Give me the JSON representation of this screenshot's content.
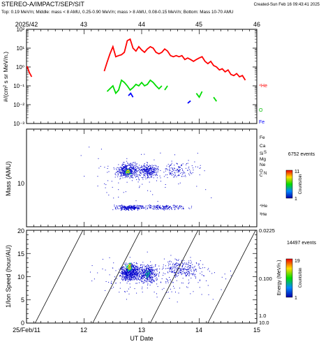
{
  "header": {
    "title": "STEREO-A/IMPACT/SEP/SIT",
    "created": "Created-Sun Feb 16 09:43:41 2025",
    "subtitle": "Top: 0.19 MeV/n; Middle: mass < 8 AMU, 0.25-0.90 MeV/n; mass > 8 AMU, 0.08-0.15 MeV/n; Bottom: Mass 10-70 AMU"
  },
  "colors": {
    "He": "#ff0000",
    "O": "#00dd00",
    "Fe": "#0000ff",
    "scatter": "#0000cc"
  },
  "chart_data": [
    {
      "type": "line",
      "panel": "top",
      "ylabel": "#/(cm² s sr MeV/n.)",
      "yscale": "log",
      "ylim_exp": [
        -3,
        2
      ],
      "ytick_labels": [
        "10⁻³",
        "10⁻²",
        "10⁻¹",
        "10⁰",
        "10¹",
        "10²"
      ],
      "top_axis_labels": [
        "2025/42",
        "43",
        "44",
        "45",
        "46"
      ],
      "x_domain_days": [
        11,
        15
      ],
      "series": [
        {
          "name": "⁴He",
          "color": "#ff0000",
          "segments": [
            [
              [
                11.01,
                1.1
              ],
              [
                11.05,
                0.5
              ],
              [
                11.09,
                0.3
              ]
            ],
            [
              [
                12.35,
                0.6
              ],
              [
                12.4,
                1.8
              ],
              [
                12.45,
                5
              ],
              [
                12.5,
                12
              ],
              [
                12.55,
                3.5
              ],
              [
                12.6,
                4
              ],
              [
                12.65,
                4.5
              ],
              [
                12.7,
                6
              ],
              [
                12.75,
                25
              ],
              [
                12.8,
                30
              ],
              [
                12.85,
                10
              ],
              [
                12.9,
                7
              ],
              [
                12.95,
                12
              ],
              [
                13.0,
                8
              ],
              [
                13.05,
                6
              ],
              [
                13.1,
                9
              ],
              [
                13.15,
                12
              ],
              [
                13.2,
                10
              ],
              [
                13.25,
                6
              ],
              [
                13.3,
                5
              ],
              [
                13.35,
                6
              ],
              [
                13.4,
                9
              ],
              [
                13.45,
                7
              ],
              [
                13.5,
                4
              ],
              [
                13.55,
                3.5
              ],
              [
                13.6,
                4
              ],
              [
                13.65,
                3.5
              ],
              [
                13.7,
                4
              ],
              [
                13.75,
                2.5
              ],
              [
                13.8,
                3
              ],
              [
                13.85,
                2.5
              ],
              [
                13.9,
                2
              ],
              [
                13.95,
                2.5
              ],
              [
                14.0,
                3
              ],
              [
                14.05,
                3.5
              ],
              [
                14.1,
                2
              ],
              [
                14.15,
                1.5
              ],
              [
                14.2,
                2
              ],
              [
                14.25,
                1.2
              ],
              [
                14.3,
                1
              ],
              [
                14.35,
                0.7
              ],
              [
                14.4,
                0.8
              ],
              [
                14.45,
                0.55
              ],
              [
                14.5,
                0.7
              ],
              [
                14.55,
                0.4
              ],
              [
                14.6,
                0.35
              ],
              [
                14.65,
                0.45
              ],
              [
                14.7,
                0.3
              ],
              [
                14.75,
                0.35
              ],
              [
                14.8,
                0.2
              ]
            ]
          ]
        },
        {
          "name": "O",
          "color": "#00dd00",
          "segments": [
            [
              [
                12.4,
                0.05
              ],
              [
                12.5,
                0.1
              ],
              [
                12.55,
                0.04
              ],
              [
                12.6,
                0.06
              ],
              [
                12.65,
                0.2
              ],
              [
                12.7,
                0.15
              ],
              [
                12.75,
                0.1
              ],
              [
                12.8,
                0.06
              ],
              [
                12.85,
                0.08
              ],
              [
                12.9,
                0.12
              ],
              [
                12.95,
                0.1
              ],
              [
                13.0,
                0.15
              ],
              [
                13.05,
                0.1
              ],
              [
                13.1,
                0.12
              ],
              [
                13.15,
                0.2
              ],
              [
                13.2,
                0.15
              ],
              [
                13.25,
                0.1
              ],
              [
                13.3,
                0.07
              ],
              [
                13.35,
                0.1
              ]
            ],
            [
              [
                13.4,
                0.06
              ],
              [
                13.45,
                0.1
              ]
            ],
            [
              [
                13.95,
                0.04
              ],
              [
                14.0,
                0.025
              ],
              [
                14.05,
                0.05
              ]
            ],
            [
              [
                14.25,
                0.025
              ],
              [
                14.3,
                0.015
              ]
            ]
          ]
        },
        {
          "name": "Fe",
          "color": "#0000ff",
          "segments": [
            [
              [
                12.77,
                0.03
              ],
              [
                12.81,
                0.04
              ],
              [
                12.85,
                0.025
              ]
            ],
            [
              [
                13.8,
                0.012
              ],
              [
                13.85,
                0.016
              ]
            ]
          ]
        }
      ],
      "legend_labels": {
        "He": "⁴He",
        "O": "O",
        "Fe": "Fe"
      }
    },
    {
      "type": "scatter",
      "panel": "middle",
      "ylabel": "Mass (AMU)",
      "yscale": "log",
      "ytick_labels": [
        "10"
      ],
      "element_labels": [
        "Fe",
        "Ca",
        "Si",
        "S",
        "Mg",
        "Ne",
        "O",
        "C",
        "N",
        "⁴He",
        "³He"
      ],
      "colorbar": {
        "events": "6752 events",
        "label": "Counts/bin",
        "max": "11",
        "min": "1"
      }
    },
    {
      "type": "scatter",
      "panel": "bottom",
      "ylabel": "1/Ion Speed (hour/AU)",
      "ylim": [
        0,
        20
      ],
      "ytick_labels": [
        "0",
        "5",
        "10",
        "15",
        "20"
      ],
      "right_axis_label": "Energy (MeV/n.)",
      "right_tick_labels": [
        "0.0225",
        "0.100",
        "1.0",
        "10.0"
      ],
      "xlabel": "UT Date",
      "xtick_labels": [
        "25/Feb/11",
        "12",
        "13",
        "14",
        "15"
      ],
      "colorbar": {
        "events": "14497 events",
        "label": "Counts/bin",
        "max": "19",
        "min": "1"
      }
    }
  ]
}
